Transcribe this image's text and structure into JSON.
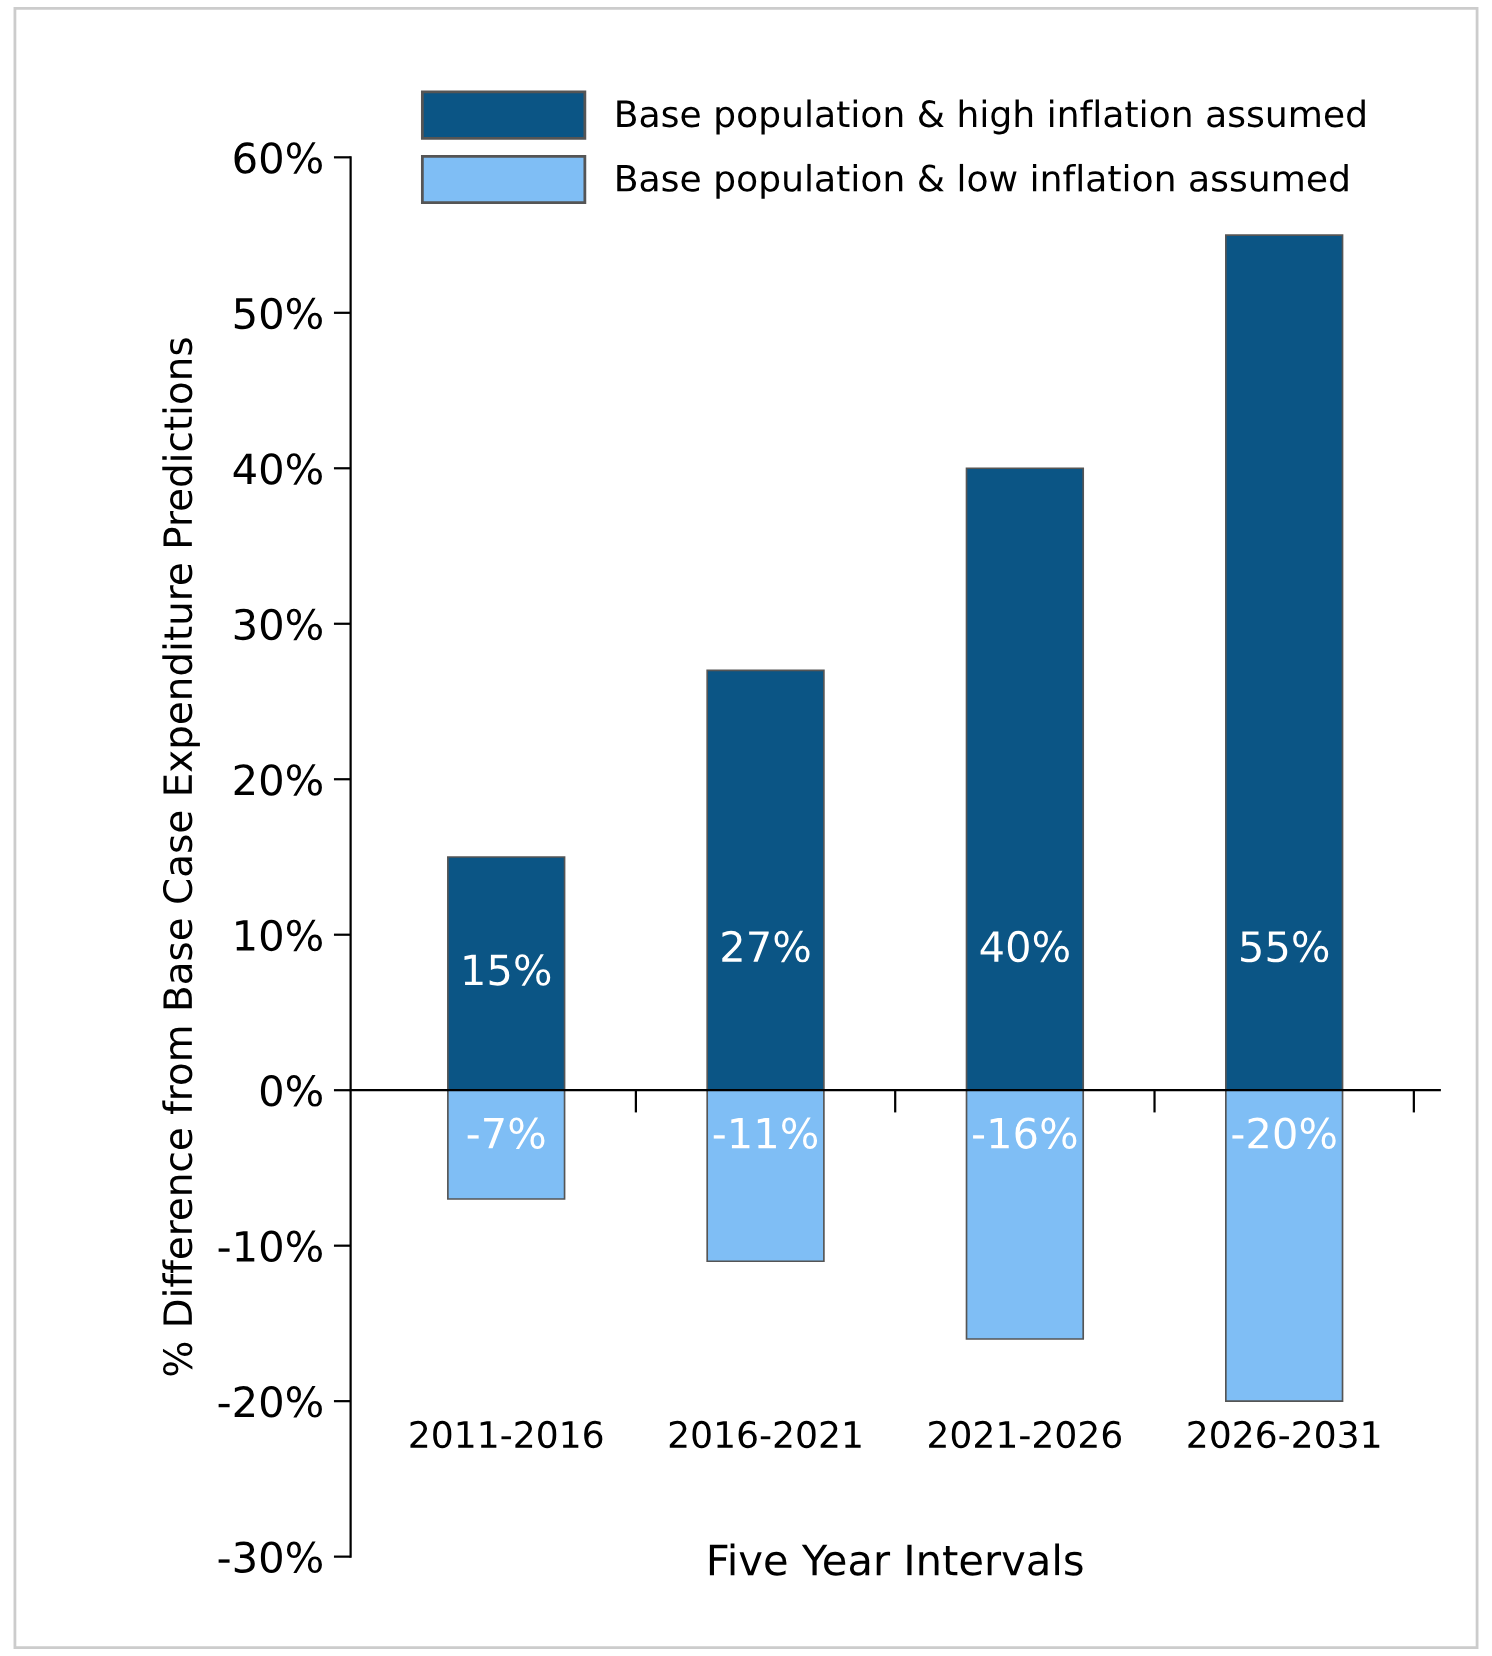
{
  "chart_data": {
    "type": "bar",
    "stacked": true,
    "xlabel": "Five Year Intervals",
    "ylabel": "% Difference from Base Case Expenditure Predictions",
    "categories": [
      "2011-2016",
      "2016-2021",
      "2021-2026",
      "2026-2031"
    ],
    "series": [
      {
        "name": "Base population & high inflation assumed",
        "color": "#0b5585",
        "values": [
          15,
          27,
          40,
          55
        ],
        "value_labels": [
          "15%",
          "27%",
          "40%",
          "55%"
        ]
      },
      {
        "name": "Base population & low inflation assumed",
        "color": "#7fbef5",
        "values": [
          -7,
          -11,
          -16,
          -20
        ],
        "value_labels": [
          "-7%",
          "-11%",
          "-16%",
          "-20%"
        ]
      }
    ],
    "ylim": [
      -30,
      60
    ],
    "yticks": [
      {
        "value": -30,
        "label": "-30%"
      },
      {
        "value": -20,
        "label": "-20%"
      },
      {
        "value": -10,
        "label": "-10%"
      },
      {
        "value": 0,
        "label": "0%"
      },
      {
        "value": 10,
        "label": "10%"
      },
      {
        "value": 20,
        "label": "20%"
      },
      {
        "value": 30,
        "label": "30%"
      },
      {
        "value": 40,
        "label": "40%"
      },
      {
        "value": 50,
        "label": "50%"
      },
      {
        "value": 60,
        "label": "60%"
      }
    ],
    "legend": "top"
  }
}
